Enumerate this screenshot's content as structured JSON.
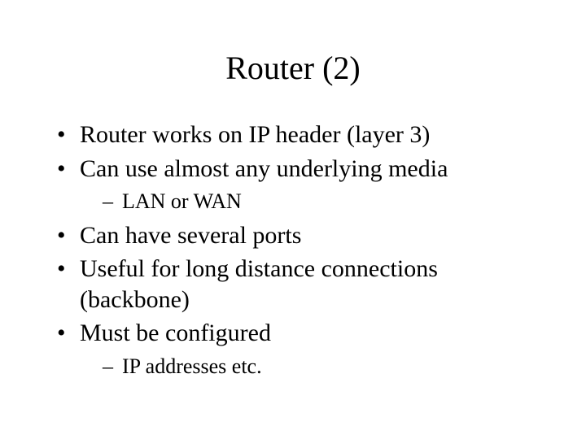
{
  "slide": {
    "title": "Router (2)",
    "title_fontsize": 40,
    "body_fontsize_level1": 30,
    "body_fontsize_level2": 26,
    "background_color": "#ffffff",
    "text_color": "#000000",
    "font_family": "Times New Roman",
    "bullets": [
      {
        "text": "Router works on IP header (layer 3)"
      },
      {
        "text": "Can use almost any underlying media",
        "sub": [
          {
            "text": "LAN or WAN"
          }
        ]
      },
      {
        "text": "Can have several ports"
      },
      {
        "text": "Useful for long distance connections (backbone)"
      },
      {
        "text": "Must be configured",
        "sub": [
          {
            "text": "IP addresses etc."
          }
        ]
      }
    ]
  }
}
